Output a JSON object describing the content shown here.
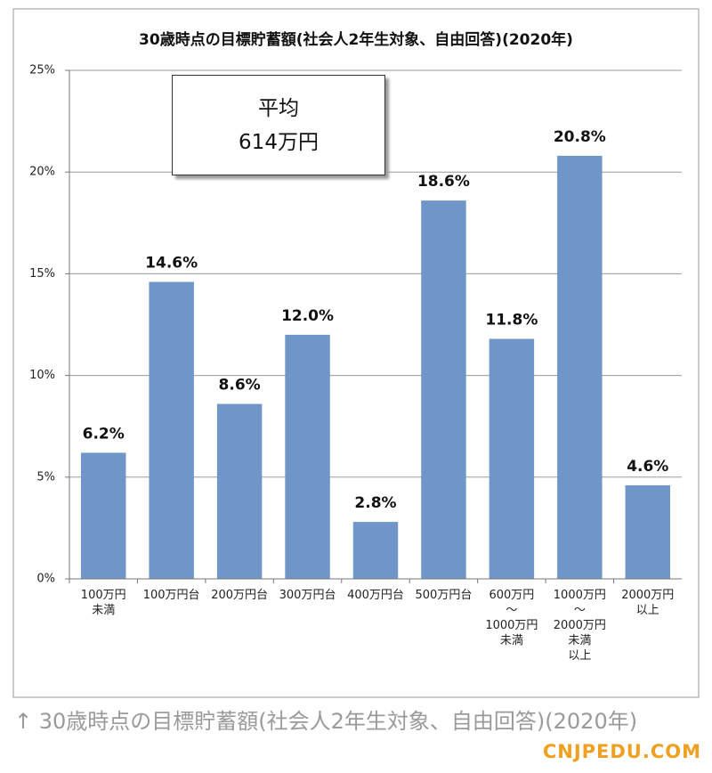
{
  "chart_data": {
    "type": "bar",
    "title": "30歳時点の目標貯蓄額(社会人2年生対象、自由回答)(2020年)",
    "categories": [
      "100万円\n未満",
      "100万円台",
      "200万円台",
      "300万円台",
      "400万円台",
      "500万円台",
      "600万円\n〜\n1000万円\n未満",
      "1000万円\n〜\n2000万円\n未満\n以上",
      "2000万円\n以上"
    ],
    "values": [
      6.2,
      14.6,
      8.6,
      12.0,
      2.8,
      18.6,
      11.8,
      20.8,
      4.6
    ],
    "value_labels": [
      "6.2%",
      "14.6%",
      "8.6%",
      "12.0%",
      "2.8%",
      "18.6%",
      "11.8%",
      "20.8%",
      "4.6%"
    ],
    "color": "#7095c9",
    "ylim": [
      0,
      25
    ],
    "yticks": [
      {
        "value": 0,
        "label": "0%"
      },
      {
        "value": 5,
        "label": "5%"
      },
      {
        "value": 10,
        "label": "10%"
      },
      {
        "value": 15,
        "label": "15%"
      },
      {
        "value": 20,
        "label": "20%"
      },
      {
        "value": 25,
        "label": "25%"
      }
    ],
    "grid": true,
    "annotation": "平均\n614万円"
  },
  "caption": "↑ 30歳時点の目標貯蓄額(社会人2年生対象、自由回答)(2020年)",
  "watermark": "CNJPEDU.COM"
}
